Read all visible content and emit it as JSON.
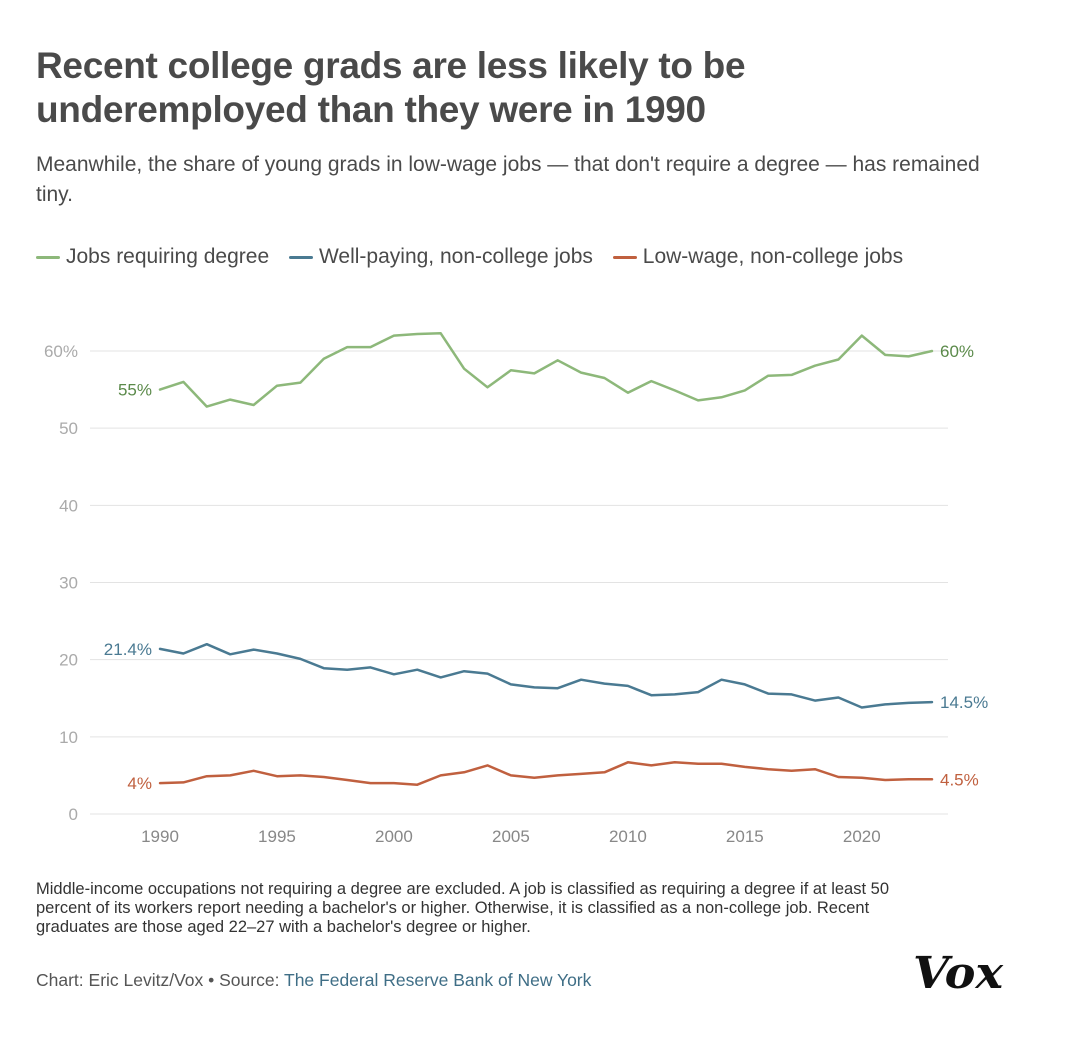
{
  "title": "Recent college grads are less likely to be underemployed than they were in 1990",
  "subtitle": "Meanwhile, the share of young grads in low-wage jobs — that don't require a degree — has remained tiny.",
  "notes": "Middle-income occupations not requiring a degree are excluded. A job is classified as requiring a degree if at least 50 percent of its workers report needing a bachelor's or higher. Otherwise, it is classified as a non-college job. Recent graduates are those aged 22–27 with a bachelor's degree or higher.",
  "credit": {
    "prefix": "Chart: Eric Levitz/Vox • Source: ",
    "source": "The Federal Reserve Bank of New York"
  },
  "logo": {
    "text": "Vox"
  },
  "chart_data": {
    "type": "line",
    "x": [
      1990,
      1991,
      1992,
      1993,
      1994,
      1995,
      1996,
      1997,
      1998,
      1999,
      2000,
      2001,
      2002,
      2003,
      2004,
      2005,
      2006,
      2007,
      2008,
      2009,
      2010,
      2011,
      2012,
      2013,
      2014,
      2015,
      2016,
      2017,
      2018,
      2019,
      2020,
      2021,
      2022,
      2023
    ],
    "series": [
      {
        "name": "Jobs requiring degree",
        "color": "#8db87a",
        "label_color": "#5b8a4a",
        "start_label": "55%",
        "end_label": "60%",
        "values": [
          55.0,
          56.0,
          52.8,
          53.7,
          53.0,
          55.5,
          55.9,
          59.0,
          60.5,
          60.5,
          62.0,
          62.2,
          62.3,
          57.7,
          55.3,
          57.5,
          57.1,
          58.8,
          57.2,
          56.5,
          54.6,
          56.1,
          54.9,
          53.6,
          54.0,
          54.9,
          56.8,
          56.9,
          58.1,
          58.9,
          62.0,
          59.5,
          59.3,
          60.0
        ]
      },
      {
        "name": "Well-paying, non-college jobs",
        "color": "#4a7a92",
        "label_color": "#4a7a92",
        "start_label": "21.4%",
        "end_label": "14.5%",
        "values": [
          21.4,
          20.8,
          22.0,
          20.7,
          21.3,
          20.8,
          20.1,
          18.9,
          18.7,
          19.0,
          18.1,
          18.7,
          17.7,
          18.5,
          18.2,
          16.8,
          16.4,
          16.3,
          17.4,
          16.9,
          16.6,
          15.4,
          15.5,
          15.8,
          17.4,
          16.8,
          15.6,
          15.5,
          14.7,
          15.1,
          13.8,
          14.2,
          14.4,
          14.5
        ]
      },
      {
        "name": "Low-wage, non-college jobs",
        "color": "#c0603f",
        "label_color": "#c0603f",
        "start_label": "4%",
        "end_label": "4.5%",
        "values": [
          4.0,
          4.1,
          4.9,
          5.0,
          5.6,
          4.9,
          5.0,
          4.8,
          4.4,
          4.0,
          4.0,
          3.8,
          5.0,
          5.4,
          6.3,
          5.0,
          4.7,
          5.0,
          5.2,
          5.4,
          6.7,
          6.3,
          6.7,
          6.5,
          6.5,
          6.1,
          5.8,
          5.6,
          5.8,
          4.8,
          4.7,
          4.4,
          4.5,
          4.5
        ]
      }
    ],
    "yticks": [
      {
        "value": 0,
        "label": "0"
      },
      {
        "value": 10,
        "label": "10"
      },
      {
        "value": 20,
        "label": "20"
      },
      {
        "value": 30,
        "label": "30"
      },
      {
        "value": 40,
        "label": "40"
      },
      {
        "value": 50,
        "label": "50"
      },
      {
        "value": 60,
        "label": "60%"
      }
    ],
    "xticks": [
      {
        "value": 1990,
        "label": "1990"
      },
      {
        "value": 1995,
        "label": "1995"
      },
      {
        "value": 2000,
        "label": "2000"
      },
      {
        "value": 2005,
        "label": "2005"
      },
      {
        "value": 2010,
        "label": "2010"
      },
      {
        "value": 2015,
        "label": "2015"
      },
      {
        "value": 2020,
        "label": "2020"
      }
    ],
    "xlim": [
      1990,
      2023
    ],
    "ylim": [
      0,
      60
    ],
    "grid": true,
    "legend_position": "top"
  }
}
